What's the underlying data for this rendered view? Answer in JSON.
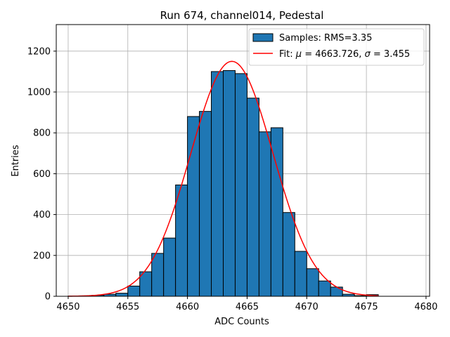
{
  "chart_data": {
    "type": "bar",
    "title": "Run 674, channel014, Pedestal",
    "xlabel": "ADC Counts",
    "ylabel": "Entries",
    "xlim": [
      4649,
      4680.3
    ],
    "ylim": [
      0,
      1330
    ],
    "xticks": [
      4650,
      4655,
      4660,
      4665,
      4670,
      4675,
      4680
    ],
    "yticks": [
      0,
      200,
      400,
      600,
      800,
      1000,
      1200
    ],
    "grid": true,
    "legend_position": "top-right",
    "bar_color": "#1f77b4",
    "fit_color": "#ff0000",
    "histogram": {
      "name": "Samples: RMS=3.35",
      "bin_edges": [
        4650,
        4651,
        4652,
        4653,
        4654,
        4655,
        4656,
        4657,
        4658,
        4659,
        4660,
        4661,
        4662,
        4663,
        4664,
        4665,
        4666,
        4667,
        4668,
        4669,
        4670,
        4671,
        4672,
        4673,
        4674,
        4675,
        4676
      ],
      "counts": [
        1,
        2,
        5,
        10,
        15,
        50,
        120,
        210,
        285,
        545,
        880,
        905,
        1100,
        1105,
        1090,
        970,
        805,
        825,
        410,
        220,
        135,
        75,
        45,
        10,
        3,
        8
      ]
    },
    "fit": {
      "name_prefix": "Fit: ",
      "mu_symbol": "μ",
      "mu_value": "= 4663.726, ",
      "sigma_symbol": "σ",
      "sigma_value": "= 3.455",
      "mu": 4663.726,
      "sigma": 3.455,
      "amplitude": 1150,
      "x_range": [
        4650,
        4676
      ]
    }
  }
}
